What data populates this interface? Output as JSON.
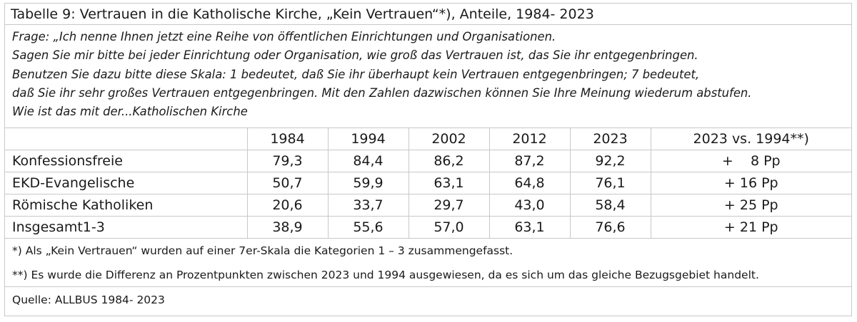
{
  "title": "Tabelle 9: Vertrauen in die Katholische Kirche, „Kein Vertrauen“*), Anteile, 1984- 2023",
  "question": [
    "Frage: „Ich nenne Ihnen jetzt eine Reihe von öffentlichen Einrichtungen und Organisationen.",
    "Sagen Sie mir bitte bei jeder Einrichtung oder Organisation, wie groß das Vertrauen ist, das Sie ihr entgegenbringen.",
    "Benutzen Sie dazu bitte diese Skala: 1 bedeutet, daß Sie ihr überhaupt kein Vertrauen entgegenbringen; 7 bedeutet,",
    "daß Sie ihr sehr großes Vertrauen entgegenbringen. Mit den Zahlen dazwischen können Sie Ihre Meinung wiederum abstufen.",
    "Wie ist das mit der...Katholischen Kirche"
  ],
  "table": {
    "header": [
      "",
      "1984",
      "1994",
      "2002",
      "2012",
      "2023",
      "2023 vs. 1994**)"
    ],
    "rows": [
      [
        "Konfessionsfreie",
        "79,3",
        "84,4",
        "86,2",
        "87,2",
        "92,2",
        "+    8 Pp"
      ],
      [
        "EKD-Evangelische",
        "50,7",
        "59,9",
        "63,1",
        "64,8",
        "76,1",
        "+ 16 Pp"
      ],
      [
        "Römische Katholiken",
        "20,6",
        "33,7",
        "29,7",
        "43,0",
        "58,4",
        "+ 25 Pp"
      ],
      [
        "Insgesamt1-3",
        "38,9",
        "55,6",
        "57,0",
        "63,1",
        "76,6",
        "+ 21 Pp"
      ]
    ]
  },
  "footnotes": [
    "*) Als „Kein Vertrauen“ wurden auf einer 7er-Skala die Kategorien 1 – 3 zusammengefasst.",
    "**) Es wurde die Differenz an Prozentpunkten zwischen 2023 und 1994 ausgewiesen, da es sich um das gleiche Bezugsgebiet handelt."
  ],
  "source": "Quelle: ALLBUS 1984- 2023"
}
